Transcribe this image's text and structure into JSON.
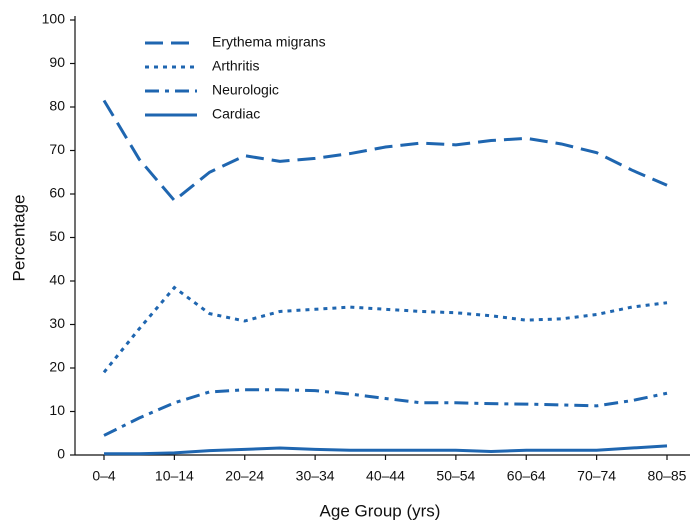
{
  "chart_data": {
    "type": "line",
    "x_label": "Age Group (yrs)",
    "y_label": "Percentage",
    "categories": [
      "0–4",
      null,
      "10–14",
      null,
      "20–24",
      null,
      "30–34",
      null,
      "40–44",
      null,
      "50–54",
      null,
      "60–64",
      null,
      "70–74",
      null,
      "80–85"
    ],
    "ylim": [
      0,
      100
    ],
    "yticks": [
      0,
      10,
      20,
      30,
      40,
      50,
      60,
      70,
      80,
      90,
      100
    ],
    "legend": "upper left",
    "series": [
      {
        "name": "Erythema migrans",
        "color": "#1f66b0",
        "dash": "18 8",
        "values": [
          81.5,
          68,
          58.5,
          65,
          68.8,
          67.5,
          68.2,
          69.3,
          70.8,
          71.7,
          71.3,
          72.3,
          72.8,
          71.5,
          69.5,
          65.5,
          62
        ]
      },
      {
        "name": "Arthritis",
        "color": "#1f66b0",
        "dash": "4 5",
        "values": [
          19,
          29,
          38.5,
          32.5,
          30.8,
          33,
          33.5,
          34,
          33.5,
          33,
          32.7,
          32,
          31,
          31.3,
          32.3,
          34,
          35
        ]
      },
      {
        "name": "Neurologic",
        "color": "#1f66b0",
        "dash": "14 6 4 6",
        "values": [
          4.5,
          8.5,
          12,
          14.5,
          15,
          15,
          14.8,
          14,
          13,
          12,
          12,
          11.8,
          11.7,
          11.5,
          11.3,
          12.5,
          14.2
        ]
      },
      {
        "name": "Cardiac",
        "color": "#1f66b0",
        "dash": "none",
        "values": [
          0.3,
          0.3,
          0.5,
          1,
          1.3,
          1.6,
          1.3,
          1.1,
          1.1,
          1.1,
          1.1,
          0.8,
          1.1,
          1.1,
          1.1,
          1.6,
          2.1
        ]
      }
    ]
  }
}
